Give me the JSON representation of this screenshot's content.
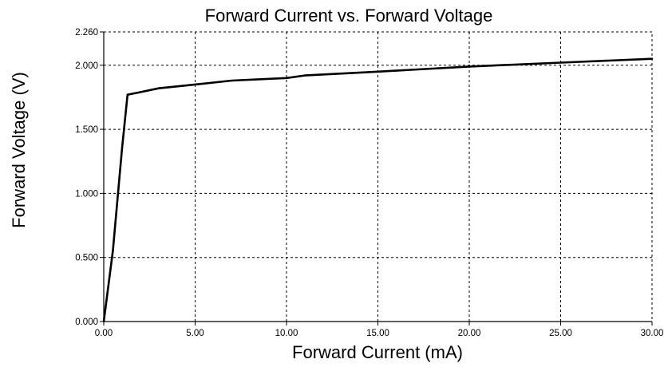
{
  "chart_data": {
    "type": "line",
    "title": "Forward Current vs. Forward Voltage",
    "xlabel": "Forward Current (mA)",
    "ylabel": "Forward Voltage (V)",
    "xlim": [
      0,
      30
    ],
    "ylim": [
      0,
      2.26
    ],
    "xticks": [
      0,
      5,
      10,
      15,
      20,
      25,
      30
    ],
    "xtick_labels": [
      "0.00",
      "5.00",
      "10.00",
      "15.00",
      "20.00",
      "25.00",
      "30.00"
    ],
    "yticks": [
      0,
      0.5,
      1.0,
      1.5,
      2.0,
      2.26
    ],
    "ytick_labels": [
      "0.000",
      "0.500",
      "1.000",
      "1.500",
      "2.000",
      "2.260"
    ],
    "grid": true,
    "series": [
      {
        "x": [
          0,
          0.5,
          1.0,
          1.3,
          2.0,
          3.0,
          5.0,
          7.0,
          10.0,
          11.0,
          15.0,
          20.0,
          25.0,
          30.0
        ],
        "y": [
          0,
          0.55,
          1.35,
          1.77,
          1.79,
          1.82,
          1.85,
          1.88,
          1.9,
          1.92,
          1.95,
          1.99,
          2.02,
          2.05
        ]
      }
    ]
  }
}
